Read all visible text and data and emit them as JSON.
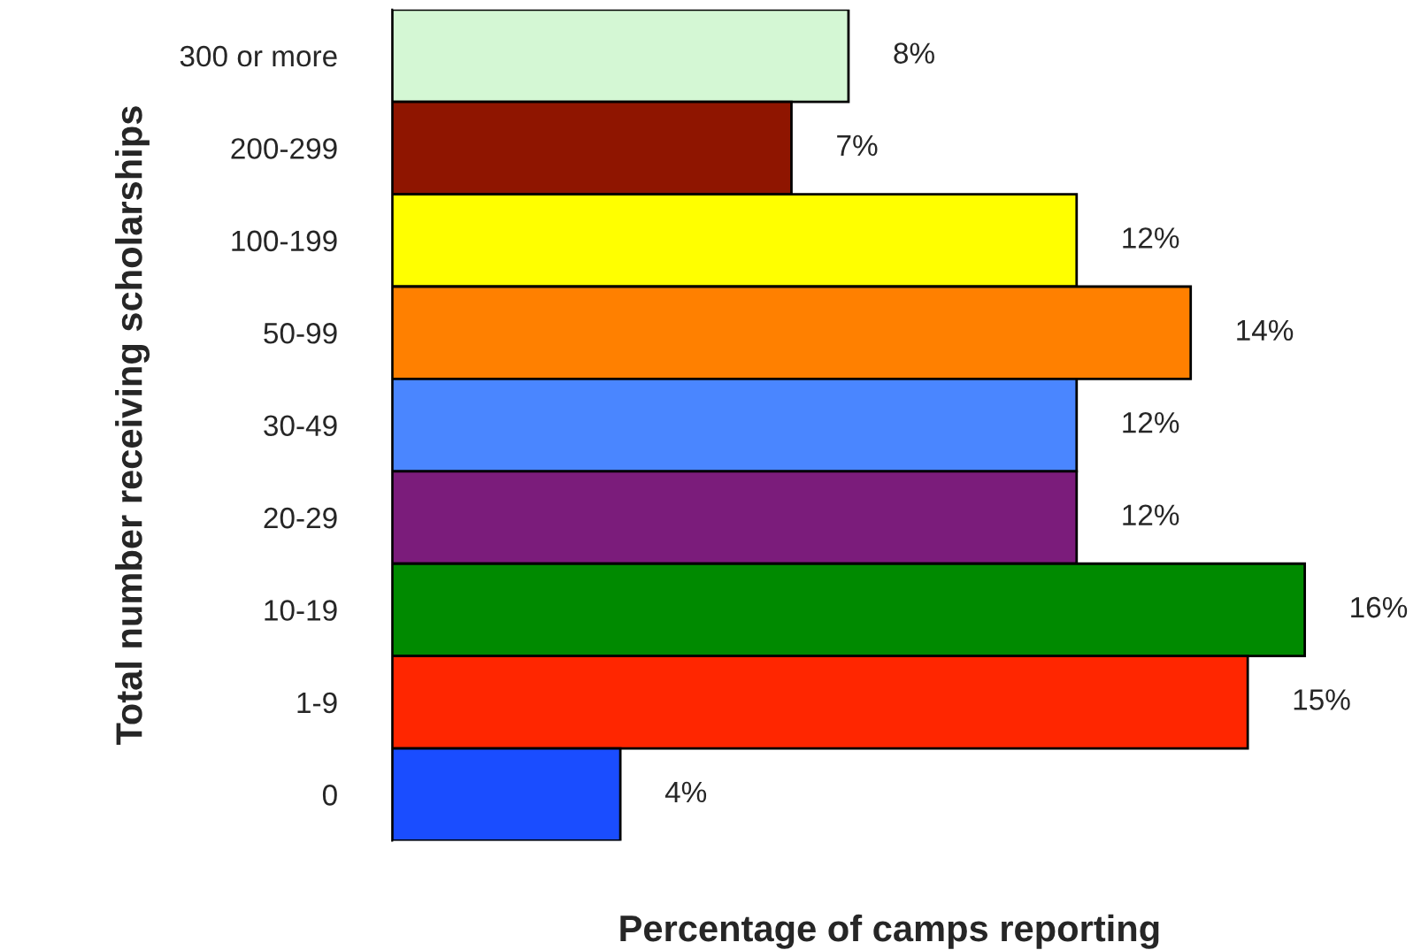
{
  "chart_data": {
    "type": "bar",
    "orientation": "horizontal",
    "xlabel": "Percentage of camps reporting",
    "ylabel": "Total number receiving scholarships",
    "categories": [
      "300 or more",
      "200-299",
      "100-199",
      "50-99",
      "30-49",
      "20-29",
      "10-19",
      "1-9",
      "0"
    ],
    "values": [
      8,
      7,
      12,
      14,
      12,
      12,
      16,
      15,
      4
    ],
    "value_labels": [
      "8%",
      "7%",
      "12%",
      "14%",
      "12%",
      "12%",
      "16%",
      "15%",
      "4%"
    ],
    "colors": [
      "#d4f7d4",
      "#8f1500",
      "#ffff00",
      "#ff8000",
      "#4a86ff",
      "#7b1c7b",
      "#008a00",
      "#ff2600",
      "#1a4dff"
    ],
    "grid": false,
    "legend": false
  }
}
